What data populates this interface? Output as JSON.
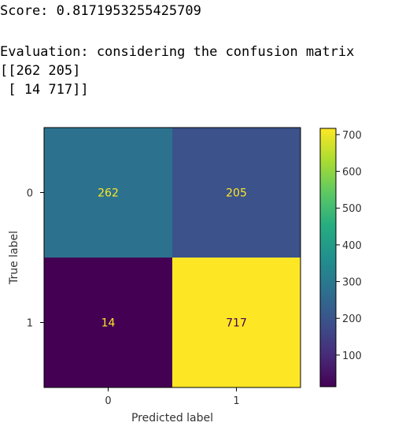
{
  "output": {
    "score_line": "Score: 0.8171953255425709",
    "evaluation_line": "Evaluation: considering the confusion matrix",
    "matrix_line_1": "[[262 205]",
    "matrix_line_2": " [ 14 717]]"
  },
  "chart_data": {
    "type": "heatmap",
    "title": "",
    "xlabel": "Predicted label",
    "ylabel": "True label",
    "x_categories": [
      "0",
      "1"
    ],
    "y_categories": [
      "0",
      "1"
    ],
    "values": [
      [
        262,
        205
      ],
      [
        14,
        717
      ]
    ],
    "colormap": "viridis",
    "colorbar": {
      "range": [
        14,
        717
      ],
      "ticks": [
        100,
        200,
        300,
        400,
        500,
        600,
        700
      ],
      "tick_labels": [
        "100",
        "200",
        "300",
        "400",
        "500",
        "600",
        "700"
      ]
    },
    "cell_colors": [
      "#2c728e",
      "#3b528b",
      "#440154",
      "#fde725"
    ],
    "cell_label_colors": [
      "#fde725",
      "#fde725",
      "#fde725",
      "#440154"
    ]
  }
}
